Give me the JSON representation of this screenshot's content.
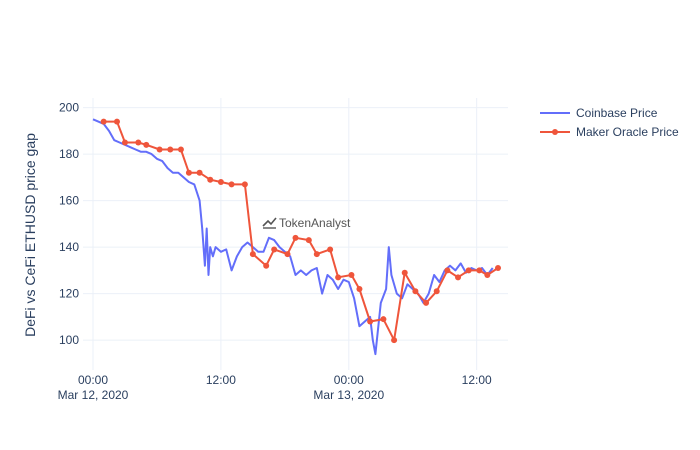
{
  "chart_data": {
    "type": "line",
    "title": "",
    "xlabel": "",
    "ylabel": "DeFi vs CeFi ETHUSD price gap",
    "ylim": [
      88,
      202
    ],
    "xlim": [
      "2020-03-12 00:00",
      "2020-03-13 14:00"
    ],
    "grid": true,
    "legend_position": "top-right",
    "watermark": "TokenAnalyst",
    "y_ticks": [
      100,
      120,
      140,
      160,
      180,
      200
    ],
    "x_ticks": [
      {
        "value": "2020-03-12 00:00",
        "line1": "00:00",
        "line2": "Mar 12, 2020"
      },
      {
        "value": "2020-03-12 12:00",
        "line1": "12:00",
        "line2": ""
      },
      {
        "value": "2020-03-13 00:00",
        "line1": "00:00",
        "line2": "Mar 13, 2020"
      },
      {
        "value": "2020-03-13 12:00",
        "line1": "12:00",
        "line2": ""
      }
    ],
    "series": [
      {
        "name": "Coinbase Price",
        "color": "#636efa",
        "mode": "lines",
        "x": [
          "2020-03-12 00:00",
          "2020-03-12 00:30",
          "2020-03-12 01:00",
          "2020-03-12 01:30",
          "2020-03-12 02:00",
          "2020-03-12 02:30",
          "2020-03-12 03:00",
          "2020-03-12 03:30",
          "2020-03-12 04:00",
          "2020-03-12 04:30",
          "2020-03-12 05:00",
          "2020-03-12 05:30",
          "2020-03-12 06:00",
          "2020-03-12 06:30",
          "2020-03-12 07:00",
          "2020-03-12 07:30",
          "2020-03-12 08:00",
          "2020-03-12 08:30",
          "2020-03-12 09:00",
          "2020-03-12 09:30",
          "2020-03-12 10:00",
          "2020-03-12 10:15",
          "2020-03-12 10:30",
          "2020-03-12 10:40",
          "2020-03-12 10:50",
          "2020-03-12 11:00",
          "2020-03-12 11:15",
          "2020-03-12 11:30",
          "2020-03-12 12:00",
          "2020-03-12 12:30",
          "2020-03-12 13:00",
          "2020-03-12 13:30",
          "2020-03-12 14:00",
          "2020-03-12 14:30",
          "2020-03-12 15:00",
          "2020-03-12 15:30",
          "2020-03-12 16:00",
          "2020-03-12 16:30",
          "2020-03-12 17:00",
          "2020-03-12 17:30",
          "2020-03-12 18:00",
          "2020-03-12 18:30",
          "2020-03-12 19:00",
          "2020-03-12 19:30",
          "2020-03-12 20:00",
          "2020-03-12 20:30",
          "2020-03-12 21:00",
          "2020-03-12 21:30",
          "2020-03-12 22:00",
          "2020-03-12 22:30",
          "2020-03-12 23:00",
          "2020-03-12 23:30",
          "2020-03-13 00:00",
          "2020-03-13 00:30",
          "2020-03-13 01:00",
          "2020-03-13 01:30",
          "2020-03-13 02:00",
          "2020-03-13 02:15",
          "2020-03-13 02:30",
          "2020-03-13 03:00",
          "2020-03-13 03:30",
          "2020-03-13 03:45",
          "2020-03-13 04:00",
          "2020-03-13 04:30",
          "2020-03-13 05:00",
          "2020-03-13 05:30",
          "2020-03-13 06:00",
          "2020-03-13 06:30",
          "2020-03-13 07:00",
          "2020-03-13 07:30",
          "2020-03-13 08:00",
          "2020-03-13 08:30",
          "2020-03-13 09:00",
          "2020-03-13 09:30",
          "2020-03-13 10:00",
          "2020-03-13 10:30",
          "2020-03-13 11:00",
          "2020-03-13 11:30",
          "2020-03-13 12:00",
          "2020-03-13 12:30",
          "2020-03-13 13:00",
          "2020-03-13 13:30"
        ],
        "y": [
          195,
          194,
          193,
          190,
          186,
          185,
          184,
          183,
          182,
          181,
          181,
          180,
          178,
          177,
          174,
          172,
          172,
          170,
          168,
          167,
          160,
          148,
          132,
          148,
          128,
          140,
          136,
          140,
          138,
          139,
          130,
          136,
          140,
          142,
          140,
          138,
          138,
          144,
          143,
          140,
          138,
          136,
          128,
          130,
          128,
          130,
          131,
          120,
          128,
          126,
          122,
          126,
          125,
          118,
          106,
          108,
          110,
          100,
          94,
          116,
          122,
          140,
          128,
          120,
          118,
          124,
          122,
          120,
          116,
          120,
          128,
          125,
          130,
          132,
          130,
          133,
          129,
          131,
          130,
          131,
          128,
          131
        ]
      },
      {
        "name": "Maker Oracle Price",
        "color": "#ef553b",
        "mode": "lines+markers",
        "x": [
          "2020-03-12 01:00",
          "2020-03-12 02:15",
          "2020-03-12 03:00",
          "2020-03-12 04:15",
          "2020-03-12 05:00",
          "2020-03-12 06:15",
          "2020-03-12 07:15",
          "2020-03-12 08:15",
          "2020-03-12 09:00",
          "2020-03-12 10:00",
          "2020-03-12 11:00",
          "2020-03-12 12:00",
          "2020-03-12 13:00",
          "2020-03-12 14:15",
          "2020-03-12 15:00",
          "2020-03-12 16:15",
          "2020-03-12 17:00",
          "2020-03-12 18:15",
          "2020-03-12 19:00",
          "2020-03-12 20:15",
          "2020-03-12 21:00",
          "2020-03-12 22:15",
          "2020-03-12 23:00",
          "2020-03-13 00:15",
          "2020-03-13 01:00",
          "2020-03-13 02:00",
          "2020-03-13 03:15",
          "2020-03-13 04:15",
          "2020-03-13 05:15",
          "2020-03-13 06:15",
          "2020-03-13 07:15",
          "2020-03-13 08:15",
          "2020-03-13 09:15",
          "2020-03-13 10:15",
          "2020-03-13 11:15",
          "2020-03-13 12:15",
          "2020-03-13 13:00",
          "2020-03-13 14:00"
        ],
        "y": [
          194,
          194,
          185,
          185,
          184,
          182,
          182,
          182,
          172,
          172,
          169,
          168,
          167,
          167,
          137,
          132,
          139,
          137,
          144,
          143,
          137,
          139,
          127,
          128,
          122,
          108,
          109,
          100,
          129,
          121,
          116,
          121,
          130,
          127,
          130,
          130,
          128,
          131
        ]
      }
    ]
  }
}
